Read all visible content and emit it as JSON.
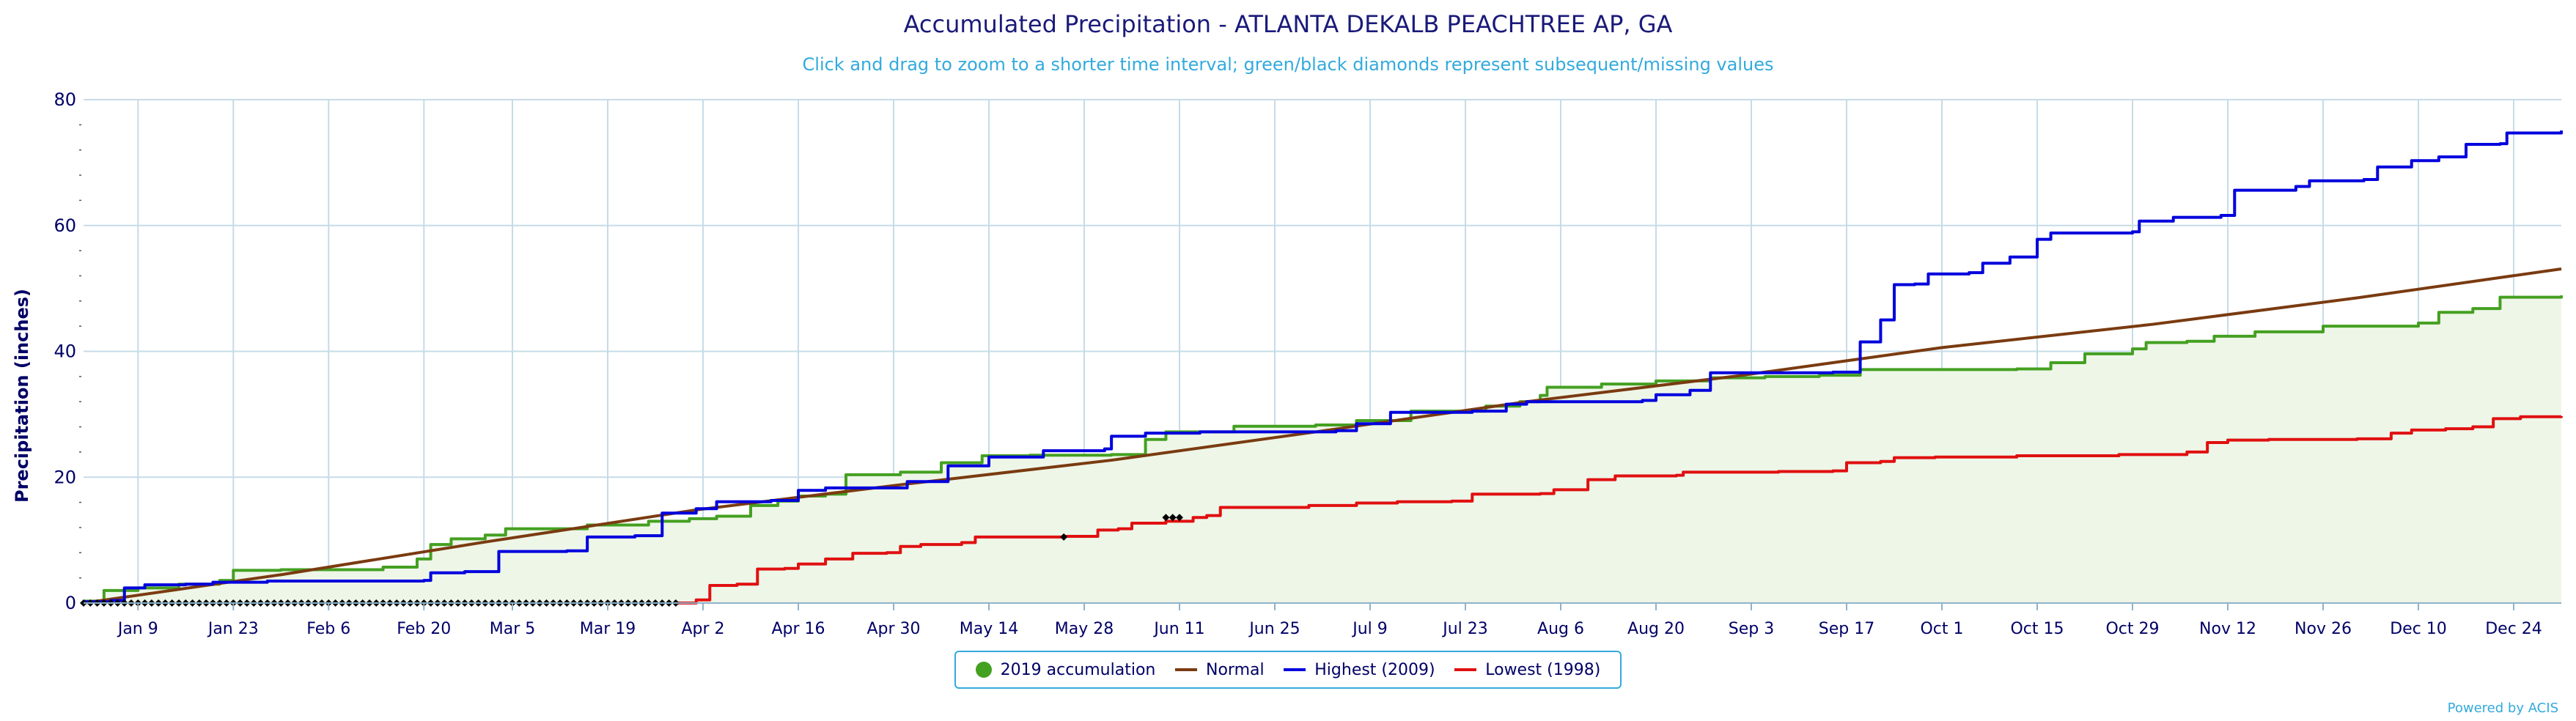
{
  "chart_data": {
    "type": "line",
    "title": "Accumulated Precipitation - ATLANTA DEKALB PEACHTREE AP, GA",
    "subtitle": "Click and drag to zoom to a shorter time interval; green/black diamonds represent subsequent/missing values",
    "ylabel": "Precipitation (inches)",
    "xlabel": "",
    "ylim": [
      0,
      80
    ],
    "yticks": [
      0,
      20,
      40,
      60,
      80
    ],
    "xlim": [
      1,
      365
    ],
    "xtick_labels": [
      "Jan 9",
      "Jan 23",
      "Feb 6",
      "Feb 20",
      "Mar 5",
      "Mar 19",
      "Apr 2",
      "Apr 16",
      "Apr 30",
      "May 14",
      "May 28",
      "Jun 11",
      "Jun 25",
      "Jul 9",
      "Jul 23",
      "Aug 6",
      "Aug 20",
      "Sep 3",
      "Sep 17",
      "Oct 1",
      "Oct 15",
      "Oct 29",
      "Nov 12",
      "Nov 26",
      "Dec 10",
      "Dec 24"
    ],
    "xtick_days": [
      9,
      23,
      37,
      51,
      64,
      78,
      92,
      106,
      120,
      134,
      148,
      162,
      176,
      190,
      204,
      218,
      232,
      246,
      260,
      274,
      288,
      302,
      316,
      330,
      344,
      358
    ],
    "grid": true,
    "legend_position": "bottom-center",
    "series": [
      {
        "name": "2019 accumulation",
        "color": "#44a021",
        "fill": "#eef6e8",
        "points": [
          [
            1,
            0.3
          ],
          [
            4,
            2.0
          ],
          [
            9,
            2.4
          ],
          [
            15,
            3.0
          ],
          [
            21,
            3.6
          ],
          [
            23,
            5.2
          ],
          [
            30,
            5.3
          ],
          [
            45,
            5.7
          ],
          [
            50,
            7.0
          ],
          [
            52,
            9.3
          ],
          [
            55,
            10.2
          ],
          [
            60,
            10.8
          ],
          [
            63,
            11.8
          ],
          [
            75,
            12.4
          ],
          [
            84,
            13.0
          ],
          [
            90,
            13.4
          ],
          [
            94,
            13.8
          ],
          [
            99,
            15.5
          ],
          [
            103,
            16.2
          ],
          [
            106,
            17.0
          ],
          [
            110,
            17.3
          ],
          [
            113,
            20.4
          ],
          [
            121,
            20.8
          ],
          [
            127,
            22.3
          ],
          [
            133,
            23.4
          ],
          [
            140,
            23.5
          ],
          [
            152,
            23.6
          ],
          [
            157,
            26.0
          ],
          [
            160,
            27.2
          ],
          [
            170,
            28.1
          ],
          [
            182,
            28.3
          ],
          [
            188,
            29.0
          ],
          [
            196,
            30.5
          ],
          [
            207,
            31.3
          ],
          [
            212,
            32.0
          ],
          [
            215,
            33.0
          ],
          [
            216,
            34.3
          ],
          [
            224,
            34.8
          ],
          [
            232,
            35.3
          ],
          [
            240,
            35.8
          ],
          [
            248,
            36.0
          ],
          [
            256,
            36.2
          ],
          [
            262,
            37.1
          ],
          [
            285,
            37.2
          ],
          [
            290,
            38.2
          ],
          [
            295,
            39.6
          ],
          [
            302,
            40.4
          ],
          [
            304,
            41.4
          ],
          [
            310,
            41.6
          ],
          [
            314,
            42.4
          ],
          [
            320,
            43.1
          ],
          [
            330,
            44.0
          ],
          [
            340,
            44.0
          ],
          [
            344,
            44.5
          ],
          [
            347,
            46.2
          ],
          [
            352,
            46.8
          ],
          [
            356,
            48.6
          ],
          [
            365,
            48.9
          ]
        ]
      },
      {
        "name": "Normal",
        "color": "#7a3b10",
        "points": [
          [
            1,
            0
          ],
          [
            30,
            4.5
          ],
          [
            60,
            9.7
          ],
          [
            91,
            14.8
          ],
          [
            121,
            18.8
          ],
          [
            152,
            22.7
          ],
          [
            182,
            27.2
          ],
          [
            213,
            32.0
          ],
          [
            244,
            36.1
          ],
          [
            274,
            40.6
          ],
          [
            305,
            44.3
          ],
          [
            335,
            48.5
          ],
          [
            365,
            53.1
          ]
        ]
      },
      {
        "name": "Highest (2009)",
        "color": "#0000dd",
        "points": [
          [
            1,
            0.2
          ],
          [
            5,
            0.4
          ],
          [
            7,
            2.4
          ],
          [
            10,
            2.9
          ],
          [
            16,
            3.0
          ],
          [
            20,
            3.3
          ],
          [
            28,
            3.5
          ],
          [
            51,
            3.6
          ],
          [
            52,
            4.8
          ],
          [
            57,
            5.0
          ],
          [
            62,
            8.2
          ],
          [
            72,
            8.3
          ],
          [
            75,
            10.5
          ],
          [
            82,
            10.7
          ],
          [
            86,
            14.3
          ],
          [
            91,
            15.0
          ],
          [
            94,
            16.1
          ],
          [
            102,
            16.3
          ],
          [
            106,
            17.9
          ],
          [
            110,
            18.3
          ],
          [
            122,
            19.3
          ],
          [
            128,
            21.8
          ],
          [
            134,
            23.2
          ],
          [
            142,
            24.2
          ],
          [
            151,
            24.5
          ],
          [
            152,
            26.5
          ],
          [
            157,
            27.0
          ],
          [
            165,
            27.2
          ],
          [
            185,
            27.4
          ],
          [
            188,
            28.5
          ],
          [
            193,
            30.3
          ],
          [
            205,
            30.5
          ],
          [
            210,
            31.6
          ],
          [
            213,
            32.0
          ],
          [
            230,
            32.2
          ],
          [
            232,
            33.1
          ],
          [
            237,
            33.8
          ],
          [
            240,
            36.6
          ],
          [
            258,
            36.7
          ],
          [
            262,
            41.5
          ],
          [
            265,
            45.0
          ],
          [
            267,
            50.6
          ],
          [
            270,
            50.7
          ],
          [
            272,
            52.3
          ],
          [
            278,
            52.5
          ],
          [
            280,
            54.0
          ],
          [
            284,
            55.0
          ],
          [
            288,
            57.8
          ],
          [
            290,
            58.8
          ],
          [
            302,
            59.0
          ],
          [
            303,
            60.7
          ],
          [
            308,
            61.3
          ],
          [
            315,
            61.6
          ],
          [
            317,
            65.6
          ],
          [
            326,
            66.2
          ],
          [
            328,
            67.1
          ],
          [
            336,
            67.3
          ],
          [
            338,
            69.3
          ],
          [
            343,
            70.3
          ],
          [
            347,
            70.9
          ],
          [
            351,
            72.9
          ],
          [
            356,
            73.0
          ],
          [
            357,
            74.7
          ],
          [
            365,
            75.1
          ]
        ]
      },
      {
        "name": "Lowest (1998)",
        "color": "#e01010",
        "points": [
          [
            88,
            0
          ],
          [
            91,
            0.5
          ],
          [
            93,
            2.8
          ],
          [
            97,
            3.0
          ],
          [
            100,
            5.4
          ],
          [
            104,
            5.5
          ],
          [
            106,
            6.2
          ],
          [
            110,
            7.0
          ],
          [
            114,
            7.9
          ],
          [
            119,
            8.0
          ],
          [
            121,
            9.0
          ],
          [
            124,
            9.3
          ],
          [
            130,
            9.6
          ],
          [
            132,
            10.5
          ],
          [
            145,
            10.6
          ],
          [
            150,
            11.6
          ],
          [
            153,
            11.8
          ],
          [
            155,
            12.7
          ],
          [
            160,
            13.0
          ],
          [
            164,
            13.6
          ],
          [
            166,
            13.9
          ],
          [
            168,
            15.2
          ],
          [
            181,
            15.5
          ],
          [
            188,
            15.9
          ],
          [
            194,
            16.1
          ],
          [
            202,
            16.2
          ],
          [
            205,
            17.3
          ],
          [
            215,
            17.4
          ],
          [
            217,
            18.0
          ],
          [
            222,
            19.6
          ],
          [
            226,
            20.2
          ],
          [
            235,
            20.3
          ],
          [
            236,
            20.8
          ],
          [
            250,
            20.9
          ],
          [
            258,
            21.0
          ],
          [
            260,
            22.3
          ],
          [
            265,
            22.5
          ],
          [
            267,
            23.1
          ],
          [
            273,
            23.2
          ],
          [
            279,
            23.2
          ],
          [
            285,
            23.4
          ],
          [
            295,
            23.4
          ],
          [
            300,
            23.6
          ],
          [
            310,
            24.0
          ],
          [
            313,
            25.5
          ],
          [
            316,
            25.9
          ],
          [
            322,
            26.0
          ],
          [
            335,
            26.1
          ],
          [
            340,
            27.0
          ],
          [
            343,
            27.5
          ],
          [
            348,
            27.7
          ],
          [
            352,
            28.0
          ],
          [
            355,
            29.3
          ],
          [
            359,
            29.6
          ],
          [
            365,
            29.7
          ]
        ]
      }
    ],
    "missing_markers": {
      "color": "#000000",
      "days": [
        1,
        2,
        3,
        4,
        5,
        6,
        7,
        8,
        9,
        10,
        11,
        12,
        13,
        14,
        15,
        16,
        17,
        18,
        19,
        20,
        21,
        22,
        23,
        24,
        25,
        26,
        27,
        28,
        29,
        30,
        31,
        32,
        33,
        34,
        35,
        36,
        37,
        38,
        39,
        40,
        41,
        42,
        43,
        44,
        45,
        46,
        47,
        48,
        49,
        50,
        51,
        52,
        53,
        54,
        55,
        56,
        57,
        58,
        59,
        60,
        61,
        62,
        63,
        64,
        65,
        66,
        67,
        68,
        69,
        70,
        71,
        72,
        73,
        74,
        75,
        76,
        77,
        78,
        79,
        80,
        81,
        82,
        83,
        84,
        85,
        86,
        87,
        88
      ],
      "extra": [
        [
          145,
          10.5
        ],
        [
          160,
          13.6
        ],
        [
          161,
          13.6
        ],
        [
          162,
          13.6
        ]
      ]
    }
  },
  "legend": {
    "items": [
      {
        "label": "2019 accumulation",
        "color": "#44a021",
        "kind": "dot"
      },
      {
        "label": "Normal",
        "color": "#7a3b10",
        "kind": "line"
      },
      {
        "label": "Highest (2009)",
        "color": "#0000dd",
        "kind": "line"
      },
      {
        "label": "Lowest (1998)",
        "color": "#e01010",
        "kind": "line"
      }
    ]
  },
  "credit": "Powered by ACIS"
}
